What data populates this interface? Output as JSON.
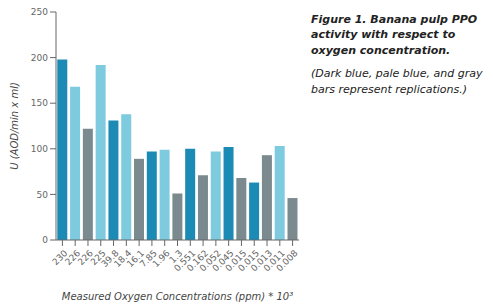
{
  "chart_data": {
    "type": "bar",
    "title": "Figure 1. Banana pulp PPO activity with respect to oxygen concentration.",
    "subtitle": "(Dark blue, pale blue, and gray bars represent replications.)",
    "categories": [
      "230",
      "226",
      "226",
      "225",
      "39.8",
      "18.4",
      "16.1",
      "7.85",
      "1.96",
      "1.3",
      "0.551",
      "0.162",
      "0.052",
      "0.045",
      "0.015",
      "0.015",
      "0.013",
      "0.011",
      "0.008"
    ],
    "values": [
      198,
      168,
      122,
      192,
      131,
      138,
      89,
      97,
      99,
      51,
      100,
      71,
      97,
      102,
      68,
      63,
      93,
      103,
      46
    ],
    "colors": [
      "#1b8ab5",
      "#7ecbe0",
      "#7a8a8e",
      "#7ecbe0",
      "#1b8ab5",
      "#7ecbe0",
      "#7a8a8e",
      "#1b8ab5",
      "#7ecbe0",
      "#7a8a8e",
      "#1b8ab5",
      "#7a8a8e",
      "#7ecbe0",
      "#1b8ab5",
      "#7a8a8e",
      "#1b8ab5",
      "#7a8a8e",
      "#7ecbe0",
      "#7a8a8e"
    ],
    "x_label": "Measured Oxygen Concentrations (ppm) * 10³",
    "y_label": "U (AOD/min x ml)",
    "ylim": [
      0,
      250
    ],
    "yticks": [
      0,
      50,
      100,
      150,
      200,
      250
    ],
    "grid": false
  }
}
